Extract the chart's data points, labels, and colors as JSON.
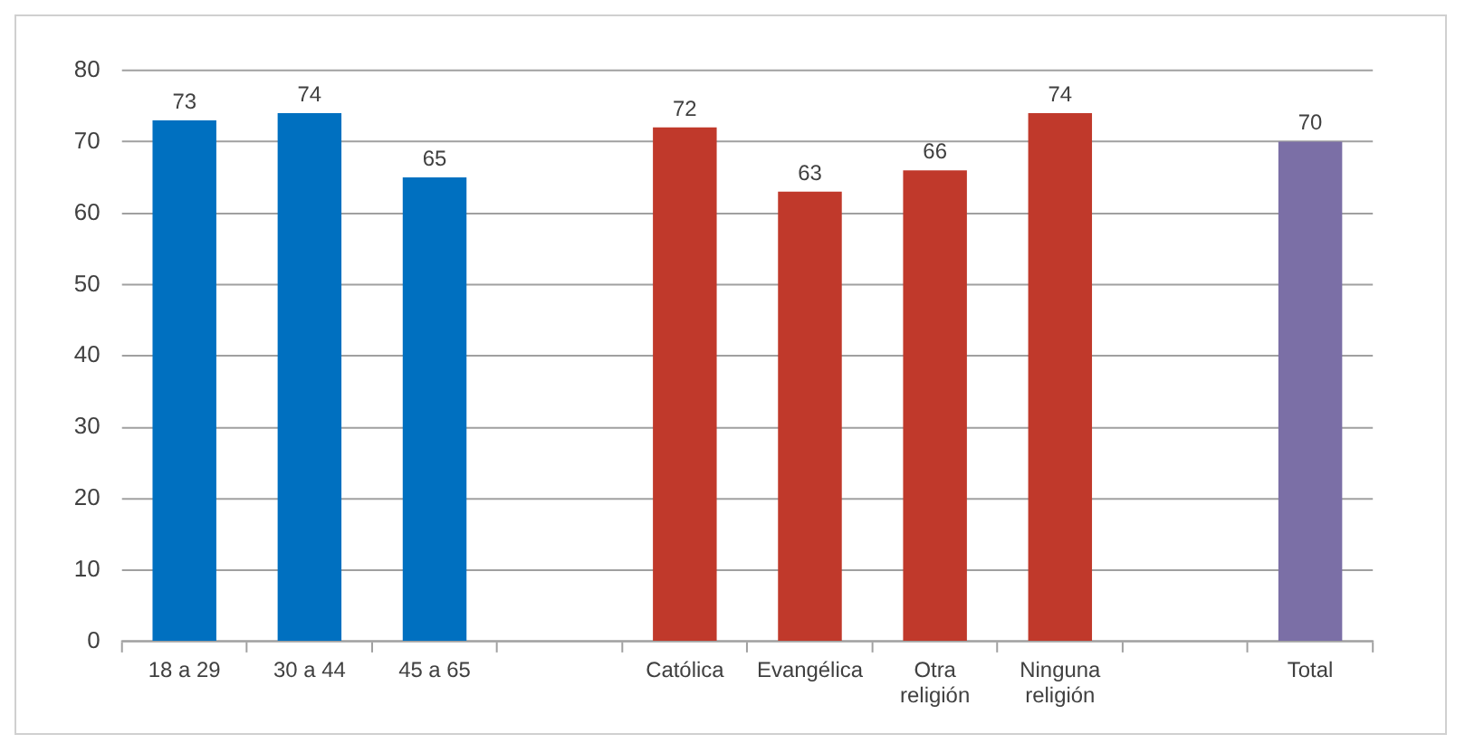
{
  "chart_data": {
    "type": "bar",
    "categories": [
      "18 a 29",
      "30 a 44",
      "45 a 65",
      null,
      "Católica",
      "Evangélica",
      "Otra religión",
      "Ninguna religión",
      null,
      "Total"
    ],
    "values": [
      73,
      74,
      65,
      null,
      72,
      63,
      66,
      74,
      null,
      70
    ],
    "colors": [
      "#0070c0",
      "#0070c0",
      "#0070c0",
      "#0070c0",
      "#c0392b",
      "#c0392b",
      "#c0392b",
      "#c0392b",
      "#7b6fa6",
      "#7b6fa6"
    ],
    "ylim": [
      0,
      80
    ],
    "yticks": [
      0,
      10,
      20,
      30,
      40,
      50,
      60,
      70,
      80
    ],
    "grid": "y",
    "data_labels": true
  }
}
